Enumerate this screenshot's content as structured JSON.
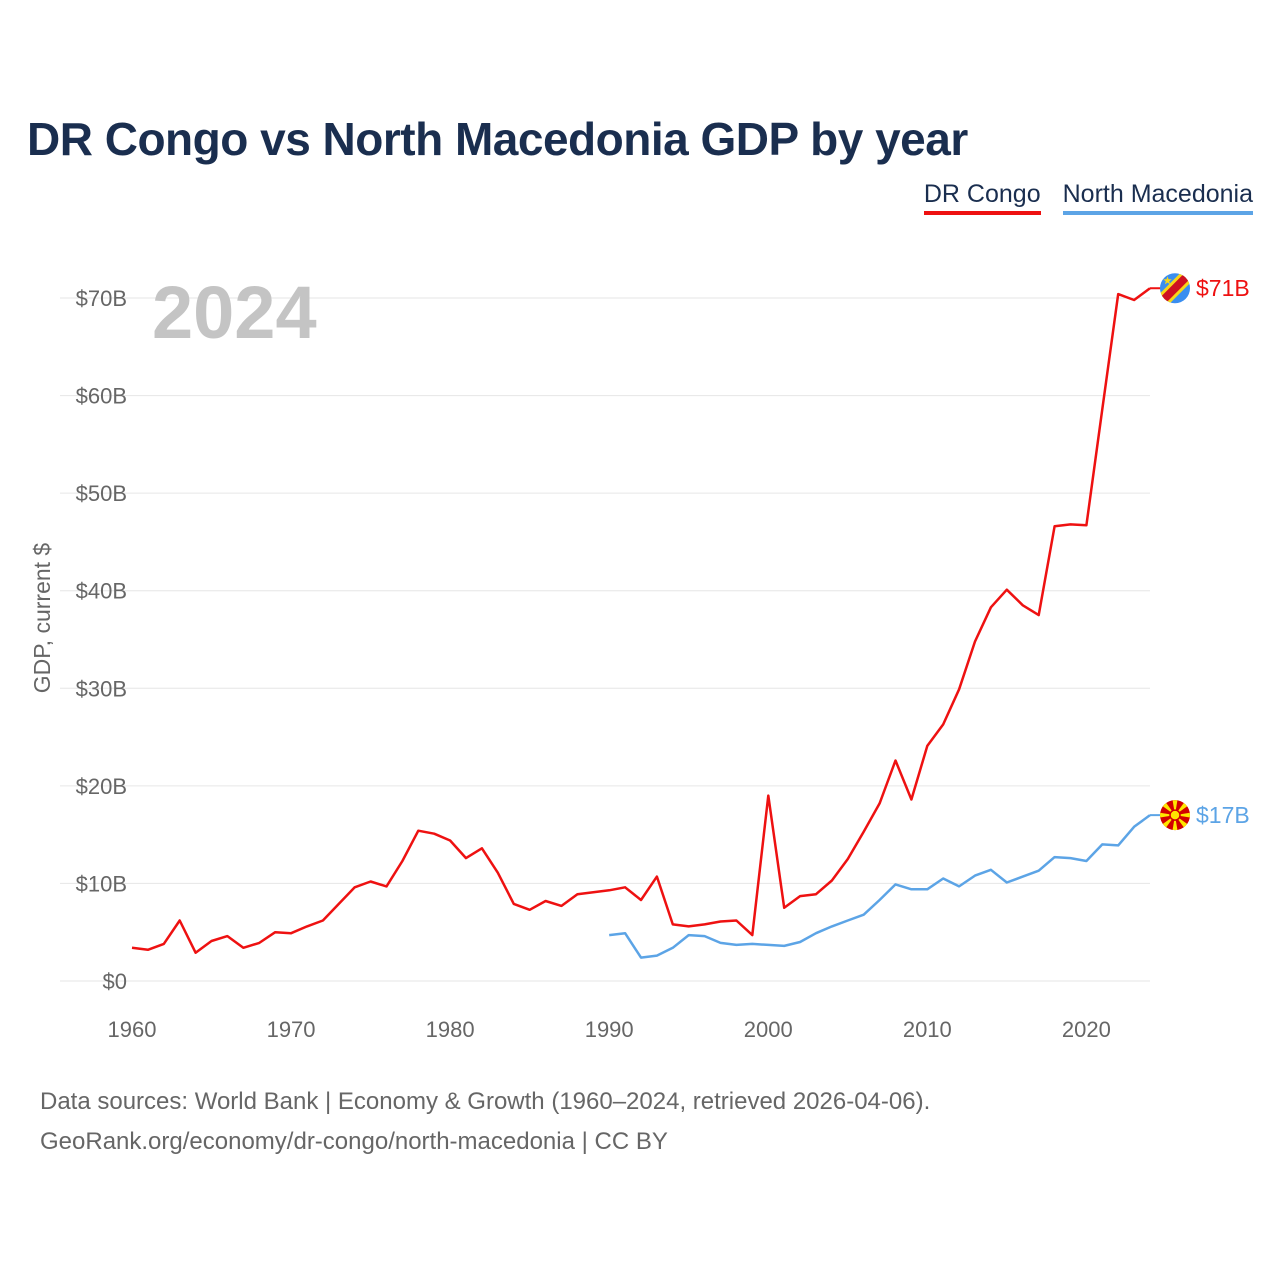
{
  "title": "DR Congo vs North Macedonia GDP by year",
  "legend": [
    {
      "label": "DR Congo",
      "color": "#ee1111"
    },
    {
      "label": "North Macedonia",
      "color": "#5ca4e6"
    }
  ],
  "footer": {
    "line1": "Data sources: World Bank | Economy & Growth (1960–2024, retrieved 2026-04-06).",
    "line2": "GeoRank.org/economy/dr-congo/north-macedonia | CC BY"
  },
  "chart_data": {
    "type": "line",
    "year_label": "2024",
    "ylabel": "GDP, current $",
    "xlim": [
      1960,
      2024
    ],
    "ylim": [
      0,
      70
    ],
    "x_ticks": [
      1960,
      1970,
      1980,
      1990,
      2000,
      2010,
      2020
    ],
    "x_tick_labels": [
      "1960",
      "1970",
      "1980",
      "1990",
      "2000",
      "2010",
      "2020"
    ],
    "y_ticks": [
      0,
      10,
      20,
      30,
      40,
      50,
      60,
      70
    ],
    "y_tick_labels": [
      "$0",
      "$10B",
      "$20B",
      "$30B",
      "$40B",
      "$50B",
      "$60B",
      "$70B"
    ],
    "series": [
      {
        "name": "DR Congo",
        "color": "#ee1111",
        "end_label": "$71B",
        "flag_icon": "dr-congo-flag-icon",
        "x": [
          1960,
          1961,
          1962,
          1963,
          1964,
          1965,
          1966,
          1967,
          1968,
          1969,
          1970,
          1971,
          1972,
          1973,
          1974,
          1975,
          1976,
          1977,
          1978,
          1979,
          1980,
          1981,
          1982,
          1983,
          1984,
          1985,
          1986,
          1987,
          1988,
          1989,
          1990,
          1991,
          1992,
          1993,
          1994,
          1995,
          1996,
          1997,
          1998,
          1999,
          2000,
          2001,
          2002,
          2003,
          2004,
          2005,
          2006,
          2007,
          2008,
          2009,
          2010,
          2011,
          2012,
          2013,
          2014,
          2015,
          2016,
          2017,
          2018,
          2019,
          2020,
          2021,
          2022,
          2023,
          2024
        ],
        "values": [
          3.4,
          3.2,
          3.8,
          6.2,
          2.9,
          4.1,
          4.6,
          3.4,
          3.9,
          5.0,
          4.9,
          5.6,
          6.2,
          7.9,
          9.6,
          10.2,
          9.7,
          12.3,
          15.4,
          15.1,
          14.4,
          12.6,
          13.6,
          11.1,
          7.9,
          7.3,
          8.2,
          7.7,
          8.9,
          9.1,
          9.3,
          9.6,
          8.3,
          10.7,
          5.8,
          5.6,
          5.8,
          6.1,
          6.2,
          4.7,
          19.0,
          7.5,
          8.7,
          8.9,
          10.3,
          12.5,
          15.3,
          18.2,
          22.6,
          18.6,
          24.1,
          26.3,
          29.9,
          34.8,
          38.3,
          40.1,
          38.5,
          37.5,
          46.6,
          46.8,
          46.7,
          58.6,
          70.4,
          69.8,
          71.0
        ]
      },
      {
        "name": "North Macedonia",
        "color": "#5ca4e6",
        "end_label": "$17B",
        "flag_icon": "north-macedonia-flag-icon",
        "x": [
          1990,
          1991,
          1992,
          1993,
          1994,
          1995,
          1996,
          1997,
          1998,
          1999,
          2000,
          2001,
          2002,
          2003,
          2004,
          2005,
          2006,
          2007,
          2008,
          2009,
          2010,
          2011,
          2012,
          2013,
          2014,
          2015,
          2016,
          2017,
          2018,
          2019,
          2020,
          2021,
          2022,
          2023,
          2024
        ],
        "values": [
          4.7,
          4.9,
          2.4,
          2.6,
          3.4,
          4.7,
          4.6,
          3.9,
          3.7,
          3.8,
          3.7,
          3.6,
          4.0,
          4.9,
          5.6,
          6.2,
          6.8,
          8.3,
          9.9,
          9.4,
          9.4,
          10.5,
          9.7,
          10.8,
          11.4,
          10.1,
          10.7,
          11.3,
          12.7,
          12.6,
          12.3,
          14.0,
          13.9,
          15.8,
          17.0
        ]
      }
    ]
  }
}
